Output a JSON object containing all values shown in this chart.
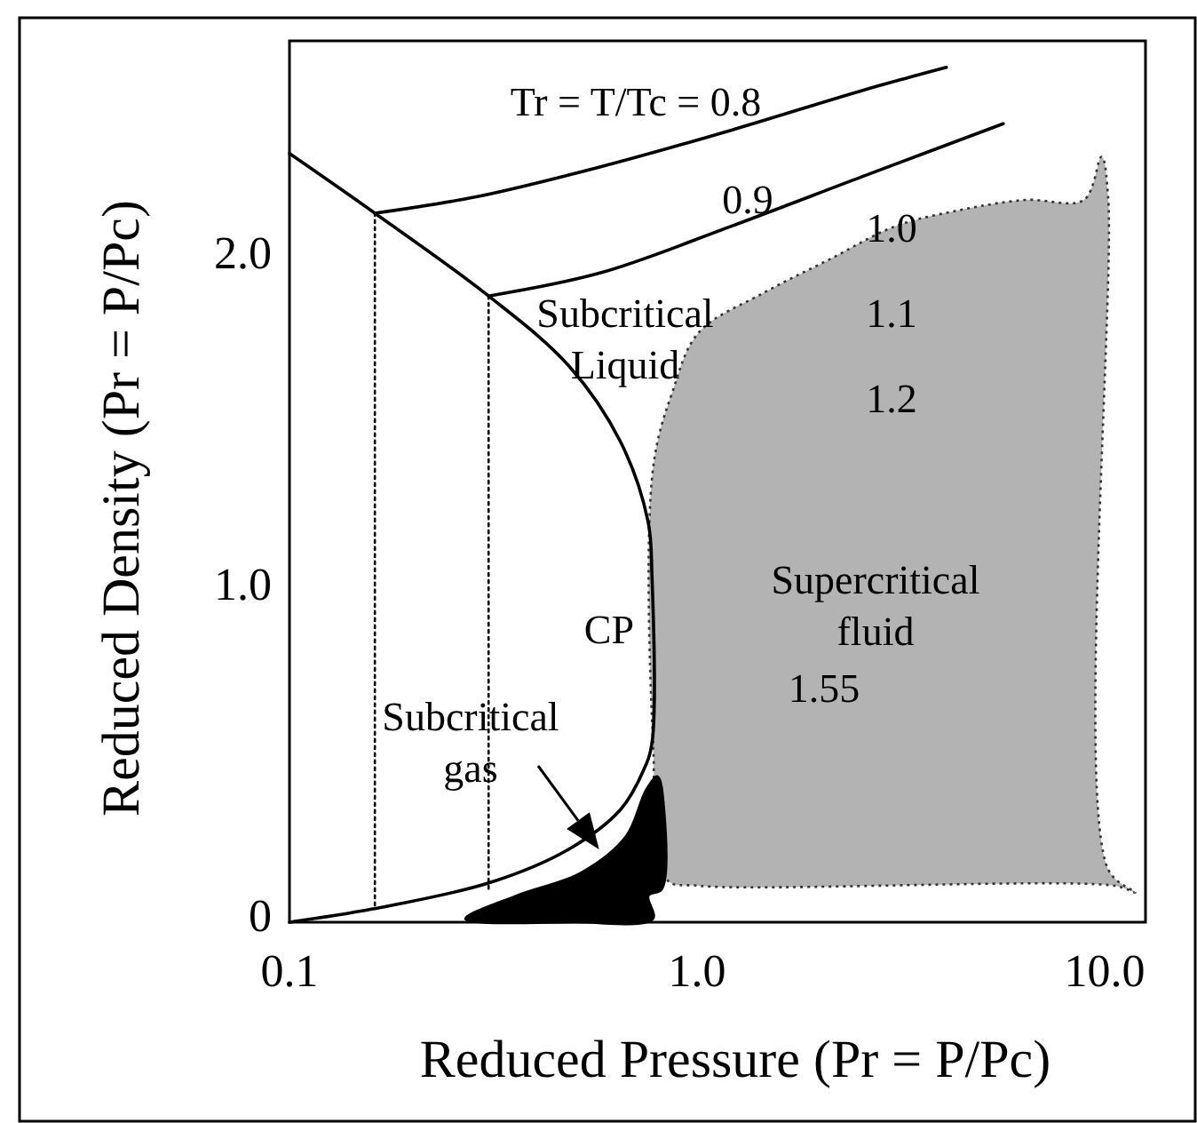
{
  "chart_data": {
    "type": "line",
    "xlabel": "Reduced Pressure (Pr = P/Pc)",
    "ylabel": "Reduced Density (Pr = P/Pc)",
    "log": "x",
    "xlim": [
      0.1,
      12.6
    ],
    "xticks": [
      0.1,
      {
        "value": 1,
        "label": "1.0"
      },
      {
        "value": 10,
        "label": "10.0"
      }
    ],
    "ylim": [
      0,
      2.66
    ],
    "yticks": [
      {
        "value": 0,
        "label": "0"
      },
      {
        "value": 1,
        "label": "1.0"
      },
      {
        "value": 2,
        "label": "2.0"
      }
    ],
    "series": [
      {
        "type": "area",
        "color": "#b3b3b3",
        "line_style": "dotted",
        "x": [
          0.84,
          0.78,
          0.78,
          0.87,
          1.01,
          1.46,
          2.11,
          3.06,
          4.44,
          6.39,
          8.9,
          9.83,
          10.2,
          10.2,
          11.9,
          10.6,
          1.01
        ],
        "values": [
          0.13,
          0.54,
          1.37,
          1.6,
          1.78,
          1.9,
          2.0,
          2.1,
          2.15,
          2.18,
          2.18,
          2.31,
          2.19,
          0.16,
          0.09,
          0.11,
          0.11
        ]
      },
      {
        "type": "area",
        "color": "#000000",
        "x": [
          0.27,
          0.36,
          0.52,
          0.67,
          0.75,
          0.8,
          0.83,
          0.82,
          0.76,
          0.78,
          0.5
        ],
        "values": [
          0.01,
          0.08,
          0.15,
          0.26,
          0.4,
          0.44,
          0.34,
          0.1,
          0.08,
          0.01,
          0.0
        ]
      },
      {
        "color": "#000000",
        "x": [
          0.1,
          0.162,
          0.308,
          0.484,
          0.649,
          0.758,
          0.775,
          0.775,
          0.74,
          0.649,
          0.484,
          0.311,
          0.16,
          0.1
        ],
        "values": [
          2.32,
          2.14,
          1.89,
          1.68,
          1.45,
          1.21,
          1.05,
          0.54,
          0.46,
          0.34,
          0.22,
          0.12,
          0.04,
          0
        ]
      },
      {
        "color": "#000000",
        "x": [
          0.162,
          0.289,
          0.58,
          1.21,
          2.54,
          4.09
        ],
        "values": [
          2.14,
          2.19,
          2.28,
          2.39,
          2.51,
          2.58
        ]
      },
      {
        "color": "#000000",
        "x": [
          0.308,
          0.58,
          1.21,
          2.54,
          5.64
        ],
        "values": [
          1.89,
          1.96,
          2.1,
          2.25,
          2.41
        ]
      },
      {
        "color": "#000000",
        "line_style": "dotted",
        "x": [
          0.162,
          0.162
        ],
        "values": [
          2.14,
          0.04
        ]
      },
      {
        "color": "#000000",
        "line_style": "dotted",
        "x": [
          0.308,
          0.308
        ],
        "values": [
          1.89,
          0.1
        ]
      }
    ],
    "annotations": [
      "Tr = T/Tc = 0.8",
      "0.9",
      "1.0",
      "1.1",
      "1.2",
      "Subcritical\nLiquid",
      "CP",
      "Supercritical\nfluid",
      "1.55",
      {
        "text": "Subcritical\ngas",
        "x": 0.575,
        "y": 0.22
      }
    ]
  }
}
